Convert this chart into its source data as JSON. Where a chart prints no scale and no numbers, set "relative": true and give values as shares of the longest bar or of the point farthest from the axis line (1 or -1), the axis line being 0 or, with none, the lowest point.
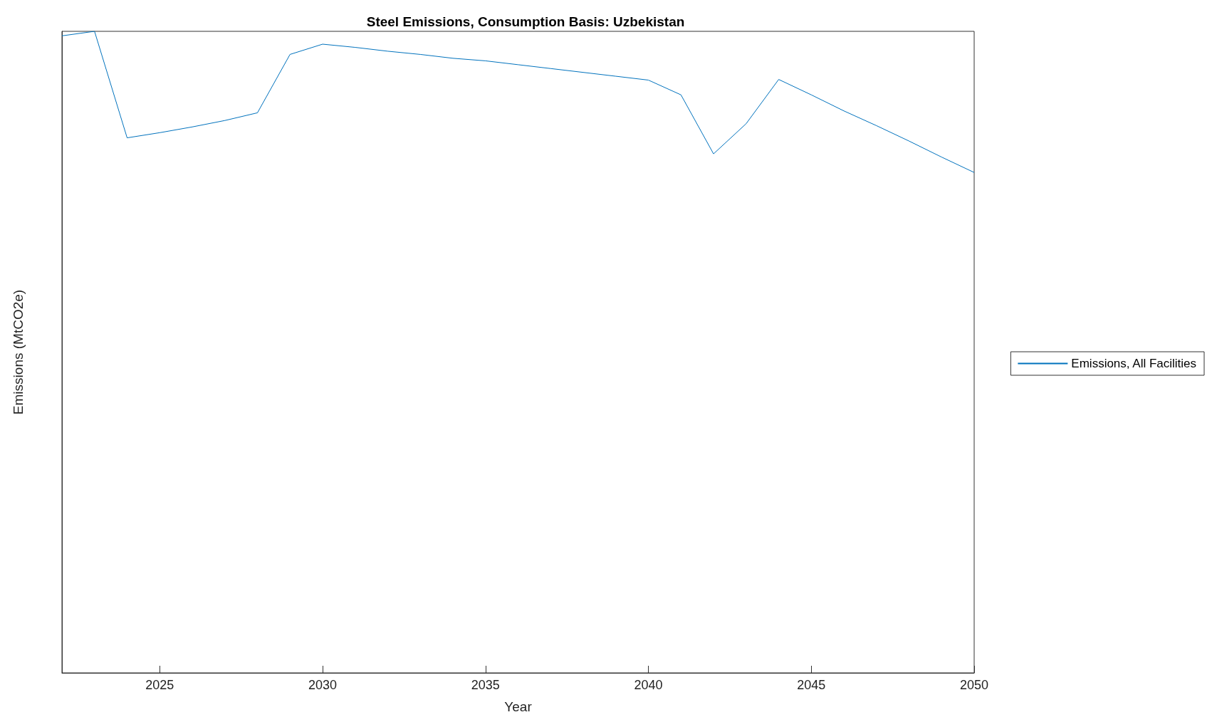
{
  "chart_data": {
    "type": "line",
    "title": "Steel Emissions, Consumption Basis: Uzbekistan",
    "xlabel": "Year",
    "ylabel": "Emissions (MtCO2e)",
    "relative": true,
    "x": [
      2022,
      2023,
      2024,
      2025,
      2026,
      2027,
      2028,
      2029,
      2030,
      2031,
      2032,
      2033,
      2034,
      2035,
      2036,
      2037,
      2038,
      2039,
      2040,
      2041,
      2042,
      2043,
      2044,
      2045,
      2046,
      2047,
      2048,
      2049,
      2050
    ],
    "series": [
      {
        "name": "Emissions, All Facilities",
        "color": "#0072bd",
        "values": [
          0.993,
          1,
          0.834,
          0.842,
          0.851,
          0.861,
          0.873,
          0.964,
          0.98,
          0.975,
          0.969,
          0.964,
          0.958,
          0.954,
          0.948,
          0.942,
          0.936,
          0.93,
          0.924,
          0.901,
          0.809,
          0.856,
          0.925,
          0.901,
          0.876,
          0.853,
          0.829,
          0.804,
          0.78
        ]
      }
    ],
    "xlim": [
      2022,
      2050
    ],
    "xticks": [
      2025,
      2030,
      2035,
      2040,
      2045,
      2050
    ],
    "grid": false,
    "legend": "right",
    "marker": "none",
    "line_style": "solid"
  }
}
